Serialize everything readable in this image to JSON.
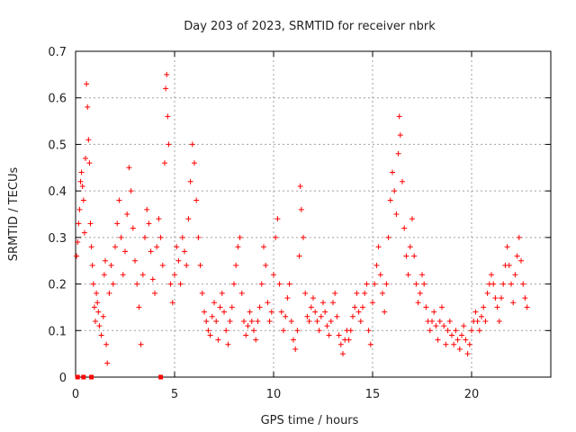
{
  "chart_data": {
    "type": "scatter",
    "title": "Day 203 of 2023, SRMTID for receiver nbrk",
    "xlabel": "GPS time / hours",
    "ylabel": "SRMTID / TECUs",
    "xlim": [
      0,
      24
    ],
    "ylim": [
      0,
      0.7
    ],
    "xticks": [
      0,
      5,
      10,
      15,
      20
    ],
    "yticks": [
      0,
      0.1,
      0.2,
      0.3,
      0.4,
      0.5,
      0.6,
      0.7
    ],
    "xtick_labels": [
      "0",
      "5",
      "10",
      "15",
      "20"
    ],
    "ytick_labels": [
      "0",
      "0.1",
      "0.2",
      "0.3",
      "0.4",
      "0.5",
      "0.6",
      "0.7"
    ],
    "grid": true,
    "marker": "+",
    "color": "#ff0000",
    "series": [
      {
        "name": "SRMTID",
        "points": [
          [
            0.05,
            0.26
          ],
          [
            0.1,
            0.29
          ],
          [
            0.15,
            0.33
          ],
          [
            0.2,
            0.36
          ],
          [
            0.25,
            0.42
          ],
          [
            0.3,
            0.44
          ],
          [
            0.35,
            0.41
          ],
          [
            0.4,
            0.38
          ],
          [
            0.45,
            0.31
          ],
          [
            0.5,
            0.47
          ],
          [
            0.55,
            0.63
          ],
          [
            0.6,
            0.58
          ],
          [
            0.65,
            0.51
          ],
          [
            0.7,
            0.46
          ],
          [
            0.75,
            0.33
          ],
          [
            0.8,
            0.28
          ],
          [
            0.85,
            0.24
          ],
          [
            0.9,
            0.2
          ],
          [
            0.95,
            0.15
          ],
          [
            1.0,
            0.12
          ],
          [
            1.05,
            0.18
          ],
          [
            1.1,
            0.16
          ],
          [
            1.15,
            0.14
          ],
          [
            1.2,
            0.11
          ],
          [
            1.3,
            0.09
          ],
          [
            1.4,
            0.13
          ],
          [
            1.45,
            0.22
          ],
          [
            1.5,
            0.25
          ],
          [
            1.55,
            0.07
          ],
          [
            1.6,
            0.03
          ],
          [
            1.7,
            0.18
          ],
          [
            1.8,
            0.24
          ],
          [
            1.9,
            0.2
          ],
          [
            2.0,
            0.28
          ],
          [
            2.1,
            0.33
          ],
          [
            2.2,
            0.38
          ],
          [
            2.3,
            0.3
          ],
          [
            2.4,
            0.22
          ],
          [
            2.5,
            0.27
          ],
          [
            2.6,
            0.35
          ],
          [
            2.7,
            0.45
          ],
          [
            2.8,
            0.4
          ],
          [
            2.9,
            0.32
          ],
          [
            3.0,
            0.25
          ],
          [
            3.1,
            0.2
          ],
          [
            3.2,
            0.15
          ],
          [
            3.3,
            0.07
          ],
          [
            3.4,
            0.22
          ],
          [
            3.5,
            0.3
          ],
          [
            3.6,
            0.36
          ],
          [
            3.7,
            0.33
          ],
          [
            3.8,
            0.27
          ],
          [
            3.9,
            0.21
          ],
          [
            4.0,
            0.18
          ],
          [
            4.1,
            0.28
          ],
          [
            4.2,
            0.34
          ],
          [
            4.3,
            0.3
          ],
          [
            4.4,
            0.24
          ],
          [
            4.5,
            0.46
          ],
          [
            4.55,
            0.62
          ],
          [
            4.6,
            0.65
          ],
          [
            4.65,
            0.56
          ],
          [
            4.7,
            0.5
          ],
          [
            4.8,
            0.2
          ],
          [
            4.9,
            0.16
          ],
          [
            5.0,
            0.22
          ],
          [
            5.1,
            0.28
          ],
          [
            5.2,
            0.25
          ],
          [
            5.3,
            0.2
          ],
          [
            5.4,
            0.3
          ],
          [
            5.5,
            0.27
          ],
          [
            5.6,
            0.24
          ],
          [
            5.7,
            0.34
          ],
          [
            5.8,
            0.42
          ],
          [
            5.9,
            0.5
          ],
          [
            6.0,
            0.46
          ],
          [
            6.1,
            0.38
          ],
          [
            6.2,
            0.3
          ],
          [
            6.3,
            0.24
          ],
          [
            6.4,
            0.18
          ],
          [
            6.5,
            0.14
          ],
          [
            6.6,
            0.12
          ],
          [
            6.7,
            0.1
          ],
          [
            6.8,
            0.09
          ],
          [
            6.9,
            0.13
          ],
          [
            7.0,
            0.16
          ],
          [
            7.1,
            0.12
          ],
          [
            7.2,
            0.08
          ],
          [
            7.3,
            0.15
          ],
          [
            7.4,
            0.18
          ],
          [
            7.5,
            0.14
          ],
          [
            7.6,
            0.1
          ],
          [
            7.7,
            0.07
          ],
          [
            7.8,
            0.12
          ],
          [
            7.9,
            0.15
          ],
          [
            8.0,
            0.2
          ],
          [
            8.1,
            0.24
          ],
          [
            8.2,
            0.28
          ],
          [
            8.3,
            0.3
          ],
          [
            8.4,
            0.18
          ],
          [
            8.5,
            0.12
          ],
          [
            8.6,
            0.09
          ],
          [
            8.7,
            0.11
          ],
          [
            8.8,
            0.14
          ],
          [
            8.9,
            0.12
          ],
          [
            9.0,
            0.1
          ],
          [
            9.1,
            0.08
          ],
          [
            9.2,
            0.12
          ],
          [
            9.3,
            0.15
          ],
          [
            9.4,
            0.2
          ],
          [
            9.5,
            0.28
          ],
          [
            9.6,
            0.24
          ],
          [
            9.7,
            0.16
          ],
          [
            9.8,
            0.12
          ],
          [
            9.9,
            0.14
          ],
          [
            10.0,
            0.22
          ],
          [
            10.1,
            0.3
          ],
          [
            10.2,
            0.34
          ],
          [
            10.3,
            0.2
          ],
          [
            10.4,
            0.14
          ],
          [
            10.5,
            0.1
          ],
          [
            10.6,
            0.13
          ],
          [
            10.7,
            0.17
          ],
          [
            10.8,
            0.2
          ],
          [
            10.9,
            0.12
          ],
          [
            11.0,
            0.08
          ],
          [
            11.1,
            0.06
          ],
          [
            11.2,
            0.1
          ],
          [
            11.3,
            0.26
          ],
          [
            11.35,
            0.41
          ],
          [
            11.4,
            0.36
          ],
          [
            11.5,
            0.3
          ],
          [
            11.6,
            0.18
          ],
          [
            11.7,
            0.13
          ],
          [
            11.8,
            0.12
          ],
          [
            11.9,
            0.15
          ],
          [
            12.0,
            0.17
          ],
          [
            12.1,
            0.14
          ],
          [
            12.2,
            0.12
          ],
          [
            12.3,
            0.1
          ],
          [
            12.4,
            0.13
          ],
          [
            12.5,
            0.16
          ],
          [
            12.6,
            0.14
          ],
          [
            12.7,
            0.11
          ],
          [
            12.8,
            0.09
          ],
          [
            12.9,
            0.12
          ],
          [
            13.0,
            0.16
          ],
          [
            13.1,
            0.18
          ],
          [
            13.2,
            0.13
          ],
          [
            13.3,
            0.09
          ],
          [
            13.4,
            0.07
          ],
          [
            13.5,
            0.05
          ],
          [
            13.6,
            0.08
          ],
          [
            13.7,
            0.1
          ],
          [
            13.8,
            0.08
          ],
          [
            13.9,
            0.1
          ],
          [
            14.0,
            0.13
          ],
          [
            14.1,
            0.15
          ],
          [
            14.2,
            0.18
          ],
          [
            14.3,
            0.14
          ],
          [
            14.4,
            0.12
          ],
          [
            14.5,
            0.15
          ],
          [
            14.6,
            0.18
          ],
          [
            14.7,
            0.2
          ],
          [
            14.8,
            0.1
          ],
          [
            14.9,
            0.07
          ],
          [
            15.0,
            0.16
          ],
          [
            15.1,
            0.2
          ],
          [
            15.2,
            0.24
          ],
          [
            15.3,
            0.28
          ],
          [
            15.4,
            0.22
          ],
          [
            15.5,
            0.18
          ],
          [
            15.6,
            0.14
          ],
          [
            15.7,
            0.2
          ],
          [
            15.8,
            0.3
          ],
          [
            15.9,
            0.38
          ],
          [
            16.0,
            0.44
          ],
          [
            16.1,
            0.4
          ],
          [
            16.2,
            0.35
          ],
          [
            16.3,
            0.48
          ],
          [
            16.35,
            0.56
          ],
          [
            16.4,
            0.52
          ],
          [
            16.5,
            0.42
          ],
          [
            16.6,
            0.32
          ],
          [
            16.7,
            0.26
          ],
          [
            16.8,
            0.22
          ],
          [
            16.9,
            0.28
          ],
          [
            17.0,
            0.34
          ],
          [
            17.1,
            0.26
          ],
          [
            17.2,
            0.2
          ],
          [
            17.3,
            0.16
          ],
          [
            17.4,
            0.18
          ],
          [
            17.5,
            0.22
          ],
          [
            17.6,
            0.2
          ],
          [
            17.7,
            0.15
          ],
          [
            17.8,
            0.12
          ],
          [
            17.9,
            0.1
          ],
          [
            18.0,
            0.12
          ],
          [
            18.1,
            0.14
          ],
          [
            18.2,
            0.11
          ],
          [
            18.3,
            0.08
          ],
          [
            18.4,
            0.12
          ],
          [
            18.5,
            0.15
          ],
          [
            18.6,
            0.11
          ],
          [
            18.7,
            0.07
          ],
          [
            18.8,
            0.1
          ],
          [
            18.9,
            0.12
          ],
          [
            19.0,
            0.09
          ],
          [
            19.1,
            0.07
          ],
          [
            19.2,
            0.1
          ],
          [
            19.3,
            0.08
          ],
          [
            19.4,
            0.06
          ],
          [
            19.5,
            0.09
          ],
          [
            19.6,
            0.11
          ],
          [
            19.7,
            0.08
          ],
          [
            19.8,
            0.05
          ],
          [
            19.9,
            0.07
          ],
          [
            20.0,
            0.1
          ],
          [
            20.1,
            0.12
          ],
          [
            20.2,
            0.14
          ],
          [
            20.3,
            0.12
          ],
          [
            20.4,
            0.1
          ],
          [
            20.5,
            0.13
          ],
          [
            20.6,
            0.15
          ],
          [
            20.7,
            0.12
          ],
          [
            20.8,
            0.18
          ],
          [
            20.9,
            0.2
          ],
          [
            21.0,
            0.22
          ],
          [
            21.1,
            0.2
          ],
          [
            21.2,
            0.17
          ],
          [
            21.3,
            0.15
          ],
          [
            21.4,
            0.12
          ],
          [
            21.5,
            0.17
          ],
          [
            21.6,
            0.2
          ],
          [
            21.7,
            0.24
          ],
          [
            21.8,
            0.28
          ],
          [
            21.9,
            0.24
          ],
          [
            22.0,
            0.2
          ],
          [
            22.1,
            0.16
          ],
          [
            22.2,
            0.22
          ],
          [
            22.3,
            0.26
          ],
          [
            22.4,
            0.3
          ],
          [
            22.5,
            0.25
          ],
          [
            22.6,
            0.2
          ],
          [
            22.7,
            0.17
          ],
          [
            22.8,
            0.15
          ]
        ]
      },
      {
        "name": "zero-markers",
        "marker": "square",
        "points": [
          [
            0.1,
            0
          ],
          [
            0.4,
            0
          ],
          [
            0.8,
            0
          ],
          [
            4.3,
            0
          ]
        ]
      }
    ]
  }
}
